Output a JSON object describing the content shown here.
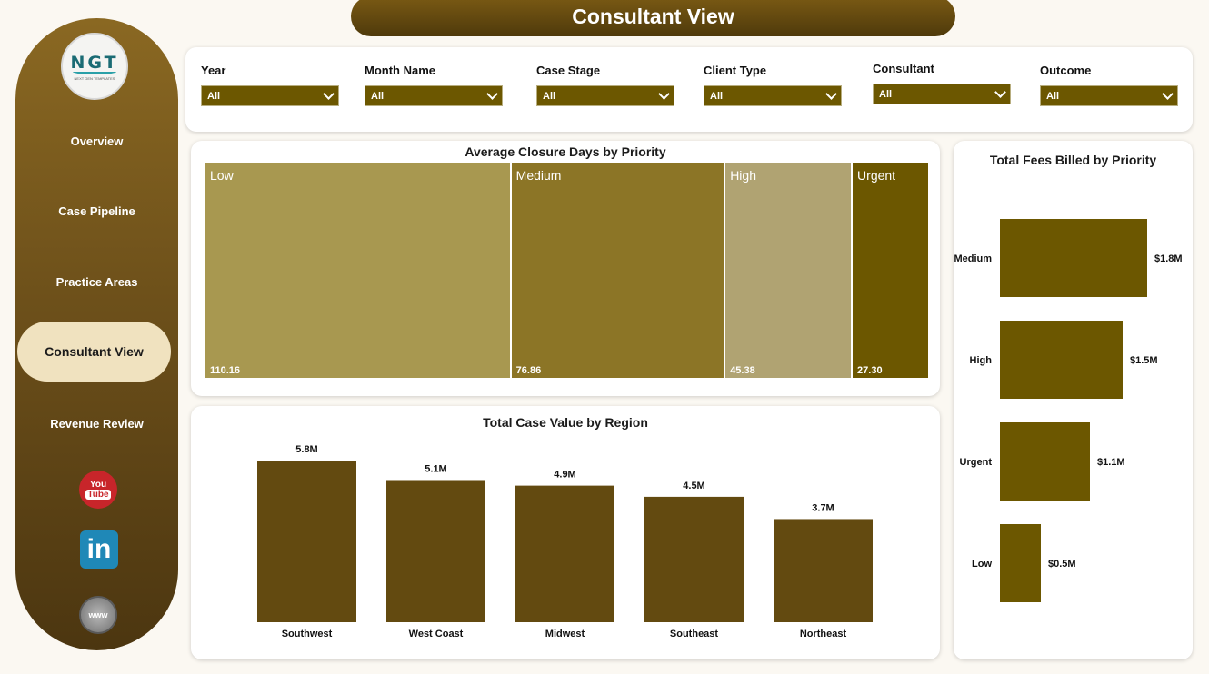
{
  "header": {
    "title": "Consultant View"
  },
  "logo": {
    "mark": "NGT",
    "tagline": "NEXT GEN TEMPLATES"
  },
  "sidebar": {
    "items": [
      {
        "label": "Overview"
      },
      {
        "label": "Case Pipeline"
      },
      {
        "label": "Practice Areas"
      },
      {
        "label": "Consultant View",
        "active": true
      },
      {
        "label": "Revenue Review"
      }
    ],
    "social": [
      {
        "icon": "youtube-icon",
        "text_top": "You",
        "text_bottom": "Tube"
      },
      {
        "icon": "linkedin-icon",
        "text": "in"
      },
      {
        "icon": "website-icon",
        "text": "www"
      }
    ]
  },
  "filters": [
    {
      "label": "Year",
      "value": "All"
    },
    {
      "label": "Month Name",
      "value": "All"
    },
    {
      "label": "Case Stage",
      "value": "All"
    },
    {
      "label": "Client Type",
      "value": "All"
    },
    {
      "label": "Consultant",
      "value": "All"
    },
    {
      "label": "Outcome",
      "value": "All"
    }
  ],
  "colors": {
    "accent_dark": "#6c5700",
    "treemap": [
      "#a89850",
      "#8c7526",
      "#b0a372",
      "#6c5700"
    ],
    "region_bar": "#634a10",
    "fees_bar": "#6c5700",
    "active_nav": "#f0e2bf"
  },
  "chart_data": [
    {
      "type": "treemap",
      "title": "Average Closure Days by Priority",
      "categories": [
        "Low",
        "Medium",
        "High",
        "Urgent"
      ],
      "values": [
        110.16,
        76.86,
        45.38,
        27.3
      ],
      "labels": [
        "110.16",
        "76.86",
        "45.38",
        "27.30"
      ]
    },
    {
      "type": "bar",
      "title": "Total Case Value by Region",
      "categories": [
        "Southwest",
        "West Coast",
        "Midwest",
        "Southeast",
        "Northeast"
      ],
      "values": [
        5.8,
        5.1,
        4.9,
        4.5,
        3.7
      ],
      "labels": [
        "5.8M",
        "5.1M",
        "4.9M",
        "4.5M",
        "3.7M"
      ],
      "unit": "M"
    },
    {
      "type": "bar",
      "orientation": "horizontal",
      "title": "Total Fees Billed by Priority",
      "categories": [
        "Medium",
        "High",
        "Urgent",
        "Low"
      ],
      "values": [
        1.8,
        1.5,
        1.1,
        0.5
      ],
      "labels": [
        "$1.8M",
        "$1.5M",
        "$1.1M",
        "$0.5M"
      ],
      "unit": "$M"
    }
  ]
}
